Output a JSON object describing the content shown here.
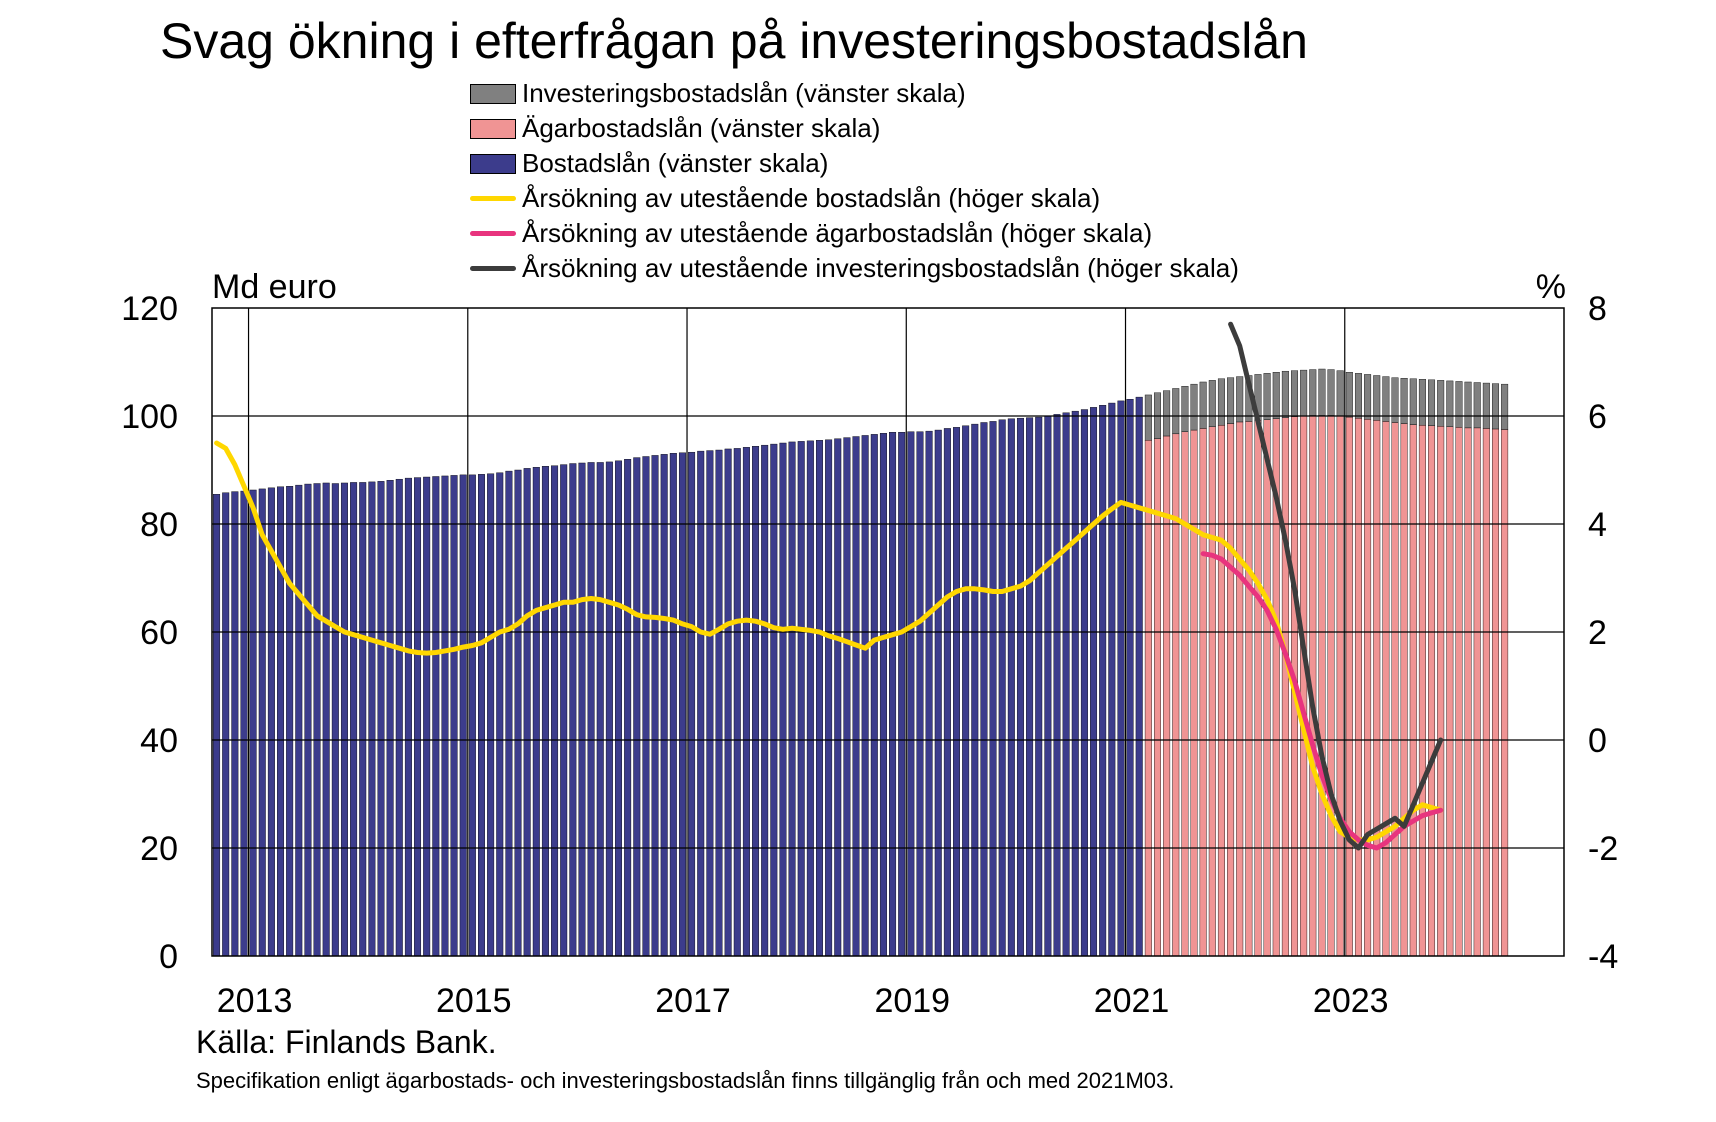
{
  "chart_data": {
    "type": "bar+line",
    "title": "Svag ökning i efterfrågan på investeringsbostadslån",
    "left_axis": {
      "unit": "Md euro",
      "ticks": [
        "0",
        "20",
        "40",
        "60",
        "80",
        "100",
        "120"
      ],
      "range": [
        0,
        120
      ]
    },
    "right_axis": {
      "unit": "%",
      "ticks": [
        "-4",
        "-2",
        "0",
        "2",
        "4",
        "6",
        "8"
      ],
      "range": [
        -4,
        8
      ]
    },
    "x_axis": {
      "ticks": [
        "2013",
        "2015",
        "2017",
        "2019",
        "2021",
        "2023"
      ],
      "start": "2012-09",
      "end": "2024-12"
    },
    "grid": true,
    "legend_position": "top",
    "colors": {
      "investment": "#808080",
      "owner": "#F09494",
      "housing": "#3C3C8C",
      "growth_housing": "#FFD700",
      "growth_owner": "#E8347E",
      "growth_investment": "#3C3C3C"
    },
    "legend": [
      {
        "key": "investment",
        "kind": "box",
        "label": "Investeringsbostadslån (vänster skala)"
      },
      {
        "key": "owner",
        "kind": "box",
        "label": "Ägarbostadslån (vänster skala)"
      },
      {
        "key": "housing",
        "kind": "box",
        "label": "Bostadslån (vänster skala)"
      },
      {
        "key": "growth_housing",
        "kind": "line",
        "label": "Årsökning av utestående bostadslån (höger skala)"
      },
      {
        "key": "growth_owner",
        "kind": "line",
        "label": "Årsökning av utestående ägarbostadslån (höger skala)"
      },
      {
        "key": "growth_investment",
        "kind": "line",
        "label": "Årsökning av utestående investeringsbostadslån (höger skala)"
      }
    ],
    "bars_start": "2012-09",
    "bars_housing_total_md_eur": [
      85.5,
      85.8,
      86.0,
      86.1,
      86.3,
      86.5,
      86.7,
      86.9,
      87.0,
      87.2,
      87.4,
      87.5,
      87.6,
      87.5,
      87.6,
      87.7,
      87.7,
      87.8,
      87.9,
      88.1,
      88.3,
      88.5,
      88.6,
      88.7,
      88.8,
      88.9,
      89.0,
      89.1,
      89.1,
      89.2,
      89.3,
      89.5,
      89.8,
      90.0,
      90.3,
      90.5,
      90.7,
      90.8,
      91.0,
      91.2,
      91.3,
      91.4,
      91.4,
      91.5,
      91.7,
      92.0,
      92.3,
      92.5,
      92.7,
      92.9,
      93.1,
      93.2,
      93.3,
      93.5,
      93.6,
      93.7,
      93.9,
      94.0,
      94.2,
      94.4,
      94.6,
      94.8,
      95.0,
      95.2,
      95.3,
      95.4,
      95.5,
      95.6,
      95.8,
      96.0,
      96.2,
      96.4,
      96.6,
      96.8,
      97.0,
      97.0,
      97.1,
      97.1,
      97.2,
      97.4,
      97.7,
      97.9,
      98.2,
      98.5,
      98.8,
      99.0,
      99.3,
      99.5,
      99.6,
      99.7,
      99.8,
      100.0,
      100.3,
      100.6,
      100.9,
      101.2,
      101.6,
      102.0,
      102.4,
      102.8,
      103.1,
      103.5,
      103.9,
      104.3,
      104.7,
      105.1,
      105.5,
      105.9,
      106.3,
      106.6,
      106.9,
      107.1,
      107.3,
      107.5,
      107.7,
      107.9,
      108.1,
      108.3,
      108.4,
      108.5,
      108.6,
      108.7,
      108.6,
      108.4,
      108.1,
      107.9,
      107.7,
      107.5,
      107.3,
      107.1,
      107.0,
      106.9,
      106.8,
      106.7,
      106.6,
      106.5,
      106.4,
      106.3,
      106.2,
      106.1,
      106.0,
      105.9
    ],
    "owner_split_start_index": 102,
    "bars_owner_md_eur": [
      95.5,
      95.8,
      96.3,
      96.7,
      97.1,
      97.4,
      97.7,
      98.0,
      98.3,
      98.6,
      98.9,
      99.0,
      99.2,
      99.3,
      99.5,
      99.7,
      99.9,
      100.0,
      100.1,
      100.1,
      100.1,
      100.0,
      99.8,
      99.6,
      99.4,
      99.2,
      99.0,
      98.8,
      98.6,
      98.4,
      98.3,
      98.2,
      98.1,
      98.0,
      97.9,
      97.8,
      97.8,
      97.7,
      97.6,
      97.5
    ],
    "growth_housing": {
      "start": "2012-09",
      "values": [
        5.5,
        5.4,
        5.1,
        4.7,
        4.3,
        3.8,
        3.5,
        3.2,
        2.9,
        2.7,
        2.5,
        2.3,
        2.2,
        2.1,
        2.0,
        1.95,
        1.9,
        1.85,
        1.8,
        1.75,
        1.7,
        1.65,
        1.62,
        1.61,
        1.62,
        1.65,
        1.68,
        1.72,
        1.75,
        1.8,
        1.9,
        2.0,
        2.05,
        2.15,
        2.3,
        2.4,
        2.45,
        2.5,
        2.55,
        2.55,
        2.6,
        2.62,
        2.6,
        2.55,
        2.5,
        2.42,
        2.32,
        2.28,
        2.27,
        2.25,
        2.22,
        2.15,
        2.1,
        2.0,
        1.96,
        2.05,
        2.15,
        2.2,
        2.22,
        2.2,
        2.15,
        2.08,
        2.05,
        2.07,
        2.05,
        2.03,
        2.0,
        1.93,
        1.88,
        1.82,
        1.76,
        1.7,
        1.85,
        1.9,
        1.95,
        2.0,
        2.1,
        2.2,
        2.35,
        2.5,
        2.65,
        2.75,
        2.8,
        2.8,
        2.78,
        2.75,
        2.75,
        2.8,
        2.85,
        2.95,
        3.1,
        3.25,
        3.4,
        3.55,
        3.7,
        3.85,
        4.0,
        4.15,
        4.28,
        4.4,
        4.35,
        4.3,
        4.25,
        4.2,
        4.15,
        4.1,
        4.0,
        3.9,
        3.8,
        3.75,
        3.7,
        3.55,
        3.35,
        3.15,
        2.9,
        2.6,
        2.2,
        1.6,
        0.9,
        0.2,
        -0.5,
        -1.0,
        -1.4,
        -1.7,
        -1.8,
        -1.85,
        -1.85,
        -1.8,
        -1.7,
        -1.6,
        -1.45,
        -1.3,
        -1.2,
        -1.25,
        -1.3
      ]
    },
    "growth_owner": {
      "start": "2021-09",
      "values": [
        3.45,
        3.42,
        3.35,
        3.2,
        3.05,
        2.85,
        2.65,
        2.4,
        2.05,
        1.6,
        1.1,
        0.5,
        -0.1,
        -0.65,
        -1.1,
        -1.45,
        -1.7,
        -1.85,
        -1.95,
        -2.0,
        -1.9,
        -1.75,
        -1.6,
        -1.5,
        -1.4,
        -1.35,
        -1.3
      ]
    },
    "growth_investment": {
      "start": "2021-12",
      "values": [
        7.7,
        7.3,
        6.6,
        5.9,
        5.2,
        4.5,
        3.7,
        2.8,
        1.7,
        0.6,
        -0.3,
        -1.0,
        -1.5,
        -1.85,
        -2.0,
        -1.75,
        -1.65,
        -1.55,
        -1.45,
        -1.6,
        -1.2,
        -0.8,
        -0.4,
        0.0
      ]
    }
  },
  "source": "Källa: Finlands Bank.",
  "footnote": "Specifikation enligt ägarbostads- och investeringsbostadslån finns tillgänglig från och med 2021M03."
}
